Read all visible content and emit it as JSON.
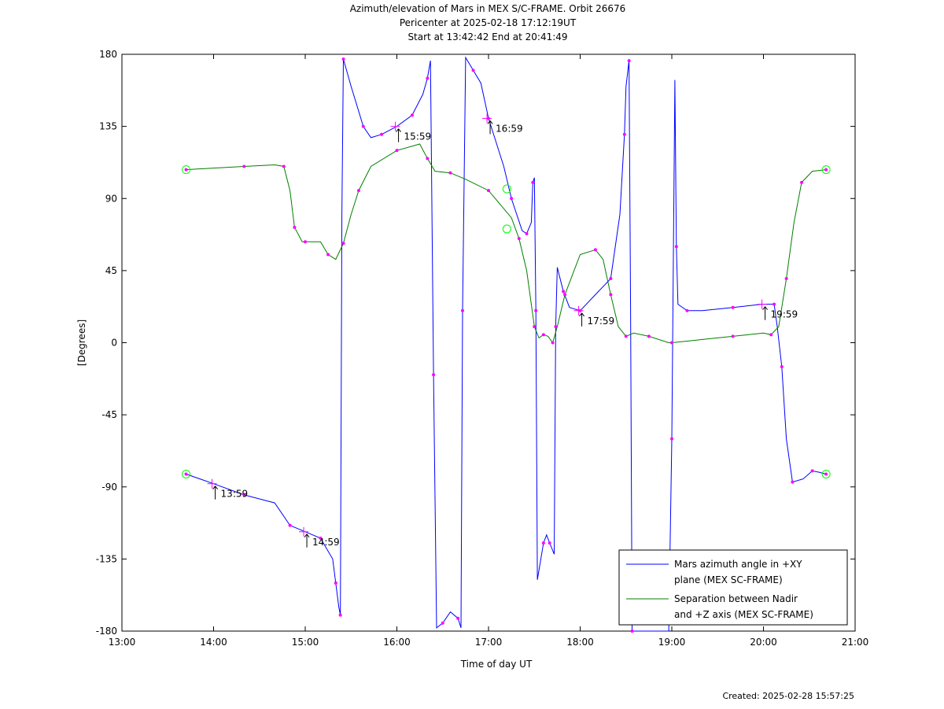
{
  "title_lines": [
    "Azimuth/elevation of Mars in MEX S/C-FRAME.  Orbit 26676",
    "Pericenter at 2025-02-18 17:12:19UT",
    "Start at 13:42:42 End at 20:41:49"
  ],
  "created": "Created: 2025-02-28 15:57:25",
  "chart_data": {
    "type": "line",
    "xlabel": "Time of day UT",
    "ylabel": "[Degrees]",
    "xlim": [
      "13:00",
      "21:00"
    ],
    "ylim": [
      -180,
      180
    ],
    "x_ticks": [
      "13:00",
      "14:00",
      "15:00",
      "16:00",
      "17:00",
      "18:00",
      "19:00",
      "20:00",
      "21:00"
    ],
    "y_ticks": [
      180,
      135,
      90,
      45,
      0,
      -45,
      -90,
      -135,
      -180
    ],
    "legend_position": "bottom-right",
    "colors": {
      "azimuth": "#0000ff",
      "separation": "#007f00",
      "markers": "#ff00ff",
      "endpoints": "#00ff00"
    },
    "series": [
      {
        "name": "Mars azimuth angle in +XY plane (MEX SC-FRAME)",
        "legend_lines": [
          "Mars azimuth angle in +XY",
          "plane (MEX SC-FRAME)"
        ],
        "color": "#0000ff",
        "points": [
          [
            "13:42",
            -82
          ],
          [
            "14:00",
            -88
          ],
          [
            "14:20",
            -95
          ],
          [
            "14:40",
            -100
          ],
          [
            "14:50",
            -114
          ],
          [
            "15:00",
            -118
          ],
          [
            "15:10",
            -122
          ],
          [
            "15:18",
            -135
          ],
          [
            "15:20",
            -150
          ],
          [
            "15:22",
            -165
          ],
          [
            "15:23",
            -170
          ],
          [
            "15:24",
            80
          ],
          [
            "15:25",
            177
          ],
          [
            "15:30",
            160
          ],
          [
            "15:38",
            135
          ],
          [
            "15:43",
            128
          ],
          [
            "15:50",
            130
          ],
          [
            "16:00",
            135
          ],
          [
            "16:10",
            142
          ],
          [
            "16:17",
            155
          ],
          [
            "16:20",
            165
          ],
          [
            "16:22",
            176
          ],
          [
            "16:24",
            -20
          ],
          [
            "16:26",
            -178
          ],
          [
            "16:30",
            -175
          ],
          [
            "16:35",
            -168
          ],
          [
            "16:40",
            -172
          ],
          [
            "16:42",
            -178
          ],
          [
            "16:43",
            20
          ],
          [
            "16:45",
            178
          ],
          [
            "16:50",
            170
          ],
          [
            "16:55",
            162
          ],
          [
            "17:00",
            140
          ],
          [
            "17:10",
            110
          ],
          [
            "17:15",
            90
          ],
          [
            "17:22",
            70
          ],
          [
            "17:25",
            68
          ],
          [
            "17:28",
            75
          ],
          [
            "17:29",
            100
          ],
          [
            "17:30",
            103
          ],
          [
            "17:31",
            20
          ],
          [
            "17:32",
            -148
          ],
          [
            "17:36",
            -125
          ],
          [
            "17:38",
            -120
          ],
          [
            "17:40",
            -125
          ],
          [
            "17:43",
            -132
          ],
          [
            "17:44",
            10
          ],
          [
            "17:45",
            47
          ],
          [
            "17:49",
            32
          ],
          [
            "17:53",
            22
          ],
          [
            "18:00",
            20
          ],
          [
            "18:10",
            30
          ],
          [
            "18:20",
            40
          ],
          [
            "18:26",
            80
          ],
          [
            "18:29",
            130
          ],
          [
            "18:30",
            160
          ],
          [
            "18:32",
            176
          ],
          [
            "18:33",
            20
          ],
          [
            "18:34",
            -180
          ],
          [
            "18:58",
            -180
          ],
          [
            "19:00",
            -60
          ],
          [
            "19:02",
            164
          ],
          [
            "19:03",
            60
          ],
          [
            "19:04",
            24
          ],
          [
            "19:10",
            20
          ],
          [
            "19:20",
            20
          ],
          [
            "19:40",
            22
          ],
          [
            "19:59",
            24
          ],
          [
            "20:07",
            24
          ],
          [
            "20:09",
            10
          ],
          [
            "20:12",
            -15
          ],
          [
            "20:15",
            -60
          ],
          [
            "20:19",
            -87
          ],
          [
            "20:26",
            -85
          ],
          [
            "20:32",
            -80
          ],
          [
            "20:37",
            -81
          ],
          [
            "20:41",
            -82
          ]
        ]
      },
      {
        "name": "Separation between Nadir and +Z axis (MEX SC-FRAME)",
        "legend_lines": [
          "Separation between Nadir",
          "and +Z axis (MEX SC-FRAME)"
        ],
        "color": "#007f00",
        "points": [
          [
            "13:42",
            108
          ],
          [
            "14:00",
            109
          ],
          [
            "14:20",
            110
          ],
          [
            "14:40",
            111
          ],
          [
            "14:46",
            110
          ],
          [
            "14:50",
            95
          ],
          [
            "14:53",
            72
          ],
          [
            "14:58",
            63
          ],
          [
            "15:00",
            63
          ],
          [
            "15:10",
            63
          ],
          [
            "15:15",
            55
          ],
          [
            "15:20",
            52
          ],
          [
            "15:25",
            62
          ],
          [
            "15:30",
            80
          ],
          [
            "15:35",
            95
          ],
          [
            "15:43",
            110
          ],
          [
            "16:00",
            120
          ],
          [
            "16:15",
            124
          ],
          [
            "16:20",
            115
          ],
          [
            "16:25",
            107
          ],
          [
            "16:35",
            106
          ],
          [
            "16:45",
            102
          ],
          [
            "17:00",
            95
          ],
          [
            "17:15",
            78
          ],
          [
            "17:20",
            65
          ],
          [
            "17:25",
            45
          ],
          [
            "17:30",
            10
          ],
          [
            "17:33",
            3
          ],
          [
            "17:36",
            5
          ],
          [
            "17:39",
            4
          ],
          [
            "17:42",
            0
          ],
          [
            "17:45",
            10
          ],
          [
            "17:50",
            30
          ],
          [
            "18:00",
            55
          ],
          [
            "18:10",
            58
          ],
          [
            "18:15",
            52
          ],
          [
            "18:20",
            30
          ],
          [
            "18:25",
            10
          ],
          [
            "18:30",
            4
          ],
          [
            "18:35",
            6
          ],
          [
            "18:45",
            4
          ],
          [
            "18:58",
            0
          ],
          [
            "19:00",
            0
          ],
          [
            "19:20",
            2
          ],
          [
            "19:40",
            4
          ],
          [
            "20:00",
            6
          ],
          [
            "20:05",
            5
          ],
          [
            "20:10",
            10
          ],
          [
            "20:15",
            40
          ],
          [
            "20:20",
            75
          ],
          [
            "20:25",
            100
          ],
          [
            "20:32",
            107
          ],
          [
            "20:41",
            108
          ]
        ]
      }
    ],
    "annotations": [
      {
        "label": "13:59",
        "series": 0,
        "x": "13:59",
        "y": -88
      },
      {
        "label": "14:59",
        "series": 0,
        "x": "14:59",
        "y": -118
      },
      {
        "label": "15:59",
        "series": 0,
        "x": "15:59",
        "y": 135
      },
      {
        "label": "16:59",
        "series": 0,
        "x": "16:59",
        "y": 140
      },
      {
        "label": "17:59",
        "series": 0,
        "x": "17:59",
        "y": 20
      },
      {
        "label": "19:59",
        "series": 0,
        "x": "19:59",
        "y": 24
      }
    ],
    "endpoints": [
      {
        "x": "13:42",
        "y": 108
      },
      {
        "x": "13:42",
        "y": -82
      },
      {
        "x": "20:41",
        "y": 108
      },
      {
        "x": "20:41",
        "y": -82
      },
      {
        "x": "17:12",
        "y": 96
      },
      {
        "x": "17:12",
        "y": 71
      }
    ]
  }
}
